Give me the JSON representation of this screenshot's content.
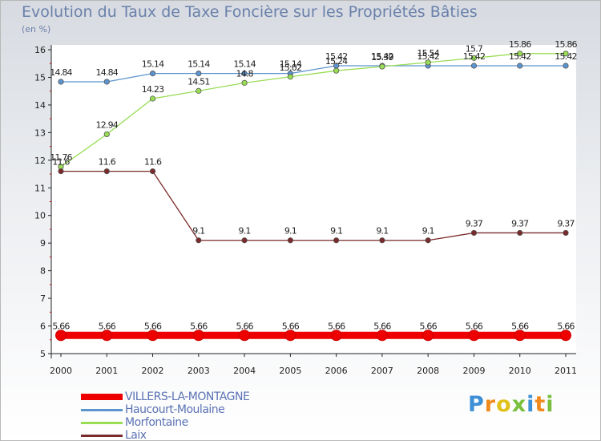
{
  "chart_data": {
    "type": "line",
    "title": "Evolution du Taux de Taxe Foncière sur les Propriétés Bâties",
    "unit": "(en %)",
    "x": [
      "2000",
      "2001",
      "2002",
      "2003",
      "2004",
      "2005",
      "2006",
      "2007",
      "2008",
      "2009",
      "2010",
      "2011"
    ],
    "ylim": [
      5,
      16
    ],
    "yticks": [
      "5",
      "6",
      "7",
      "8",
      "9",
      "10",
      "11",
      "12",
      "13",
      "14",
      "15",
      "16"
    ],
    "grid": false,
    "series": [
      {
        "name": "VILLERS-LA-MONTAGNE",
        "color": "#ee0000",
        "values": [
          5.66,
          5.66,
          5.66,
          5.66,
          5.66,
          5.66,
          5.66,
          5.66,
          5.66,
          5.66,
          5.66,
          5.66
        ],
        "labels": [
          "5.66",
          "5.66",
          "5.66",
          "5.66",
          "5.66",
          "5.66",
          "5.66",
          "5.66",
          "5.66",
          "5.66",
          "5.66",
          "5.66"
        ]
      },
      {
        "name": "Haucourt-Moulaine",
        "color": "#5c94cf",
        "values": [
          14.84,
          14.84,
          15.14,
          15.14,
          15.14,
          15.14,
          15.42,
          15.42,
          15.42,
          15.42,
          15.42,
          15.42
        ],
        "labels": [
          "14.84",
          "14.84",
          "15.14",
          "15.14",
          "15.14",
          "15.14",
          "15.42",
          "15.42",
          "15.42",
          "15.42",
          "15.42",
          "15.42"
        ]
      },
      {
        "name": "Morfontaine",
        "color": "#99dd55",
        "values": [
          11.76,
          12.94,
          14.23,
          14.51,
          14.8,
          15.02,
          15.24,
          15.39,
          15.54,
          15.7,
          15.86,
          15.86
        ],
        "labels": [
          "11.76",
          "12.94",
          "14.23",
          "14.51",
          "14.8",
          "15.02",
          "15.24",
          "15.39",
          "15.54",
          "15.7",
          "15.86",
          "15.86"
        ]
      },
      {
        "name": "Laix",
        "color": "#7a2a2a",
        "values": [
          11.6,
          11.6,
          11.6,
          9.1,
          9.1,
          9.1,
          9.1,
          9.1,
          9.1,
          9.37,
          9.37,
          9.37
        ],
        "labels": [
          "11.6",
          "11.6",
          "11.6",
          "9.1",
          "9.1",
          "9.1",
          "9.1",
          "9.1",
          "9.1",
          "9.37",
          "9.37",
          "9.37"
        ]
      }
    ]
  },
  "legend": {
    "items": [
      {
        "label": "VILLERS-LA-MONTAGNE",
        "color": "#ee0000"
      },
      {
        "label": "Haucourt-Moulaine",
        "color": "#5c94cf"
      },
      {
        "label": "Morfontaine",
        "color": "#99dd55"
      },
      {
        "label": "Laix",
        "color": "#7a2a2a"
      }
    ]
  },
  "brand": {
    "letters": [
      "P",
      "r",
      "o",
      "x",
      "i",
      "t",
      "i"
    ],
    "colors": [
      "#3d8fd6",
      "#f08a1d",
      "#e0c21a",
      "#7abf3d",
      "#3d8fd6",
      "#f08a1d",
      "#7abf3d"
    ]
  }
}
